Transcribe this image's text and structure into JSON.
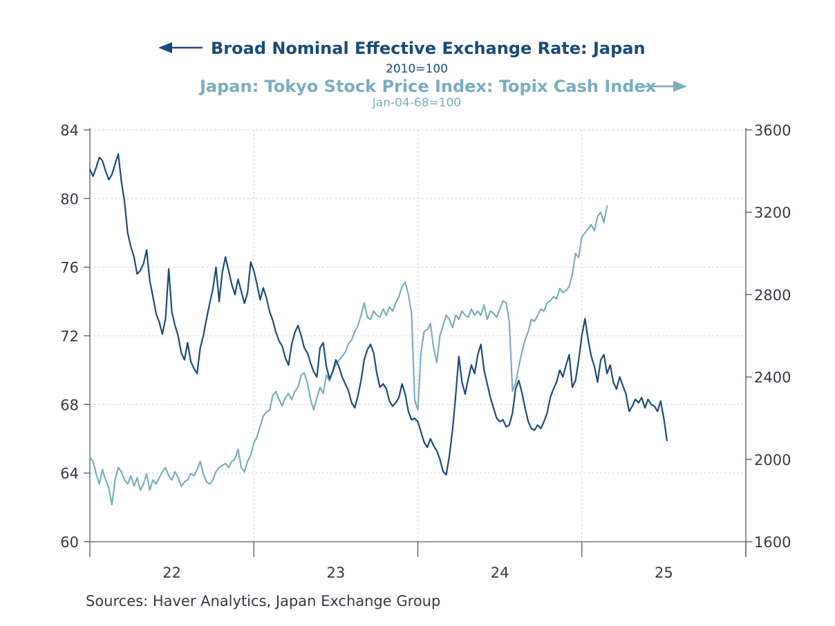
{
  "chart_data": {
    "type": "line",
    "title": "Broad Nominal Effective Exchange Rate: Japan",
    "title_subtitle": "2010=100",
    "title2": "Japan: Tokyo Stock Price Index: Topix Cash Index",
    "title2_subtitle": "Jan-04-68=100",
    "left_arrow_series": "Broad Nominal Effective Exchange Rate: Japan",
    "right_arrow_series": "Japan: Tokyo Stock Price Index: Topix Cash Index",
    "source": "Sources:  Haver Analytics, Japan Exchange Group",
    "colors": {
      "series1": "#1a4a7a",
      "series2": "#7aadc0",
      "text": "#333a44",
      "grid": "#d0d4d8"
    },
    "x_axis": {
      "start": 2022.0,
      "end": 2026.0,
      "ticks": [
        2022,
        2023,
        2024,
        2025,
        2026
      ],
      "labels": [
        {
          "text": "22",
          "at": 2022.5
        },
        {
          "text": "23",
          "at": 2023.5
        },
        {
          "text": "24",
          "at": 2024.5
        },
        {
          "text": "25",
          "at": 2025.5
        }
      ]
    },
    "y_left": {
      "min": 60,
      "max": 84,
      "ticks": [
        60,
        64,
        68,
        72,
        76,
        80,
        84
      ]
    },
    "y_right": {
      "min": 1600,
      "max": 3600,
      "ticks": [
        1600,
        2000,
        2400,
        2800,
        3200,
        3600
      ]
    },
    "grid": true,
    "series": [
      {
        "name": "Broad Nominal Effective Exchange Rate: Japan",
        "axis": "left",
        "x_start": 2022.0,
        "x_step": 0.01923,
        "values": [
          81.7,
          81.3,
          81.8,
          82.4,
          82.2,
          81.6,
          81.1,
          81.4,
          82.0,
          82.6,
          81.0,
          79.8,
          78.0,
          77.2,
          76.6,
          75.6,
          75.8,
          76.2,
          77.0,
          75.2,
          74.3,
          73.3,
          72.8,
          72.1,
          73.0,
          75.9,
          73.4,
          72.6,
          72.0,
          71.0,
          70.6,
          71.6,
          70.5,
          70.1,
          69.8,
          71.3,
          72.0,
          73.0,
          73.9,
          74.7,
          76.0,
          74.0,
          75.7,
          76.6,
          75.8,
          75.0,
          74.4,
          75.3,
          74.6,
          73.9,
          74.5,
          76.3,
          75.8,
          75.0,
          74.1,
          74.8,
          74.2,
          73.4,
          72.9,
          72.2,
          71.7,
          71.4,
          70.7,
          70.3,
          71.5,
          72.2,
          72.6,
          72.0,
          71.3,
          71.0,
          70.4,
          69.9,
          69.6,
          71.3,
          71.6,
          70.2,
          69.5,
          69.9,
          70.6,
          70.2,
          69.6,
          69.2,
          68.8,
          68.1,
          67.8,
          68.5,
          69.4,
          70.6,
          71.2,
          71.5,
          71.0,
          69.8,
          69.0,
          69.2,
          68.9,
          68.2,
          67.9,
          68.1,
          68.4,
          69.2,
          68.6,
          67.6,
          67.1,
          67.2,
          67.0,
          66.4,
          65.8,
          65.5,
          66.0,
          65.6,
          65.3,
          64.8,
          64.1,
          63.9,
          65.0,
          66.5,
          68.5,
          70.8,
          69.3,
          68.6,
          69.5,
          70.3,
          69.8,
          70.9,
          71.5,
          70.0,
          69.2,
          68.4,
          67.8,
          67.2,
          67.0,
          67.1,
          66.7,
          66.8,
          67.5,
          68.9,
          69.4,
          68.7,
          67.8,
          67.0,
          66.6,
          66.5,
          66.8,
          66.6,
          67.0,
          67.5,
          68.4,
          68.9,
          69.3,
          70.0,
          69.6,
          70.3,
          70.9,
          69.0,
          69.4,
          70.6,
          72.0,
          73.0,
          71.8,
          70.8,
          70.2,
          69.3,
          70.6,
          70.9,
          69.8,
          70.3,
          69.3,
          68.9,
          69.6,
          69.1,
          68.6,
          67.6,
          67.9,
          68.3,
          68.1,
          68.4,
          67.8,
          68.3,
          68.0,
          67.9,
          67.6,
          68.2,
          67.2,
          65.9
        ]
      },
      {
        "name": "Japan: Tokyo Stock Price Index: Topix Cash Index",
        "axis": "right",
        "x_start": 2022.0,
        "x_step": 0.01923,
        "values": [
          2010,
          1990,
          1930,
          1880,
          1950,
          1900,
          1860,
          1780,
          1900,
          1960,
          1940,
          1900,
          1880,
          1920,
          1870,
          1910,
          1850,
          1880,
          1930,
          1850,
          1900,
          1880,
          1910,
          1940,
          1960,
          1920,
          1900,
          1940,
          1910,
          1870,
          1890,
          1900,
          1930,
          1920,
          1950,
          1990,
          1930,
          1890,
          1880,
          1900,
          1940,
          1960,
          1970,
          1980,
          1960,
          1990,
          2000,
          2050,
          1960,
          1940,
          1990,
          2020,
          2080,
          2110,
          2160,
          2210,
          2230,
          2240,
          2310,
          2330,
          2290,
          2260,
          2300,
          2320,
          2290,
          2330,
          2350,
          2410,
          2420,
          2370,
          2290,
          2240,
          2300,
          2350,
          2320,
          2410,
          2380,
          2430,
          2460,
          2480,
          2500,
          2520,
          2560,
          2580,
          2620,
          2650,
          2700,
          2760,
          2690,
          2680,
          2720,
          2700,
          2690,
          2730,
          2700,
          2740,
          2720,
          2760,
          2790,
          2840,
          2860,
          2800,
          2710,
          2290,
          2240,
          2520,
          2620,
          2630,
          2660,
          2540,
          2470,
          2600,
          2650,
          2700,
          2680,
          2640,
          2700,
          2680,
          2720,
          2700,
          2690,
          2730,
          2700,
          2720,
          2700,
          2750,
          2680,
          2720,
          2710,
          2690,
          2730,
          2770,
          2760,
          2670,
          2330,
          2370,
          2450,
          2520,
          2580,
          2620,
          2680,
          2670,
          2700,
          2730,
          2720,
          2760,
          2770,
          2790,
          2780,
          2830,
          2810,
          2820,
          2840,
          2900,
          3000,
          2980,
          3080,
          3100,
          3120,
          3140,
          3110,
          3180,
          3200,
          3150,
          3230
        ]
      }
    ]
  }
}
